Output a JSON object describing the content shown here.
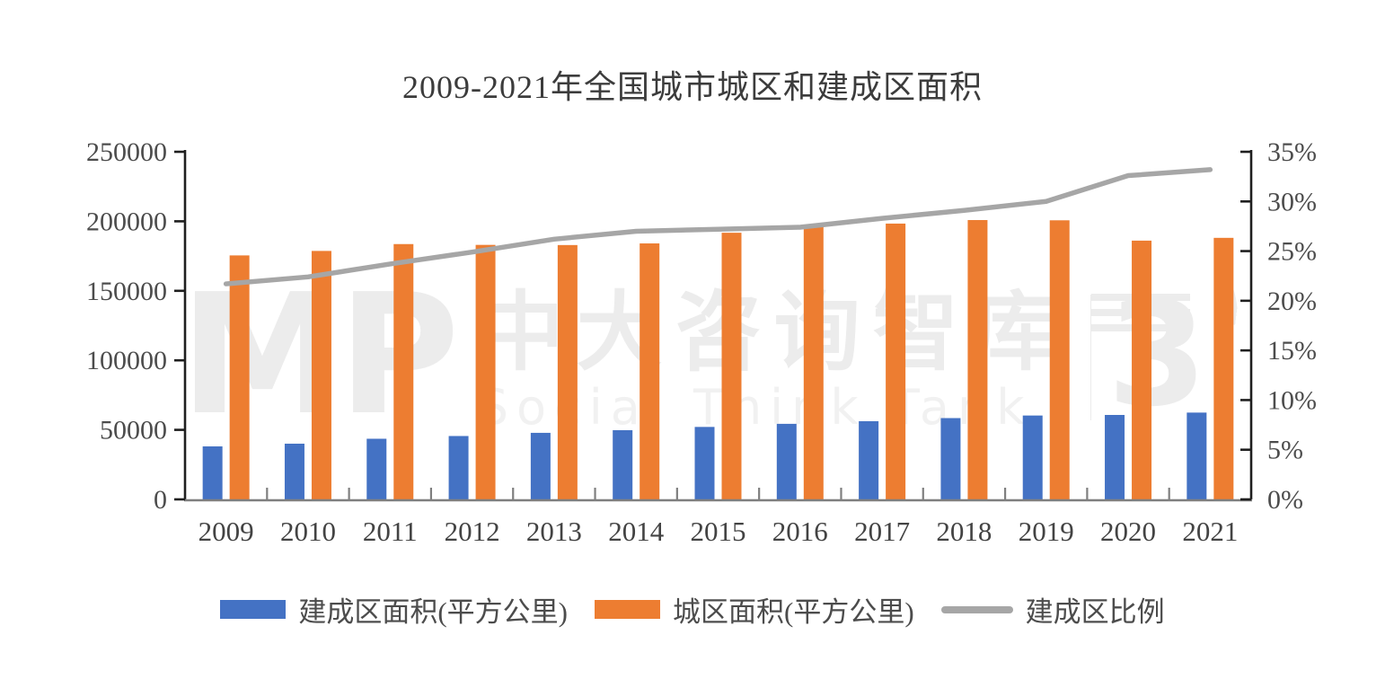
{
  "watermark": {
    "logo_text": "MP",
    "cn_text": "中大咨询智库",
    "en_text": "Social Think Tank",
    "right_logo": "3"
  },
  "chart_data": {
    "type": "bar+line combo",
    "title": "2009-2021年全国城市城区和建成区面积",
    "categories": [
      "2009",
      "2010",
      "2011",
      "2012",
      "2013",
      "2014",
      "2015",
      "2016",
      "2017",
      "2018",
      "2019",
      "2020",
      "2021"
    ],
    "series": [
      {
        "name": "建成区面积(平方公里)",
        "type": "bar",
        "axis": "left",
        "color": "#4472C4",
        "values": [
          38107,
          40058,
          43603,
          45566,
          47855,
          49773,
          52102,
          54331,
          56225,
          58456,
          60312,
          60721,
          62421
        ]
      },
      {
        "name": "城区面积(平方公里)",
        "type": "bar",
        "axis": "left",
        "color": "#ED7D31",
        "values": [
          175464,
          178692,
          183618,
          183039,
          182920,
          184099,
          191776,
          196900,
          198357,
          200897,
          200721,
          186100,
          188100
        ]
      },
      {
        "name": "建成区比例",
        "type": "line",
        "axis": "right",
        "color": "#A6A6A6",
        "values": [
          21.7,
          22.4,
          23.7,
          24.9,
          26.2,
          27.0,
          27.2,
          27.4,
          28.3,
          29.1,
          30.0,
          32.6,
          33.2
        ]
      }
    ],
    "left_axis": {
      "min": 0,
      "max": 250000,
      "step": 50000,
      "tick_labels": [
        "0",
        "50000",
        "100000",
        "150000",
        "200000",
        "250000"
      ]
    },
    "right_axis": {
      "min": 0,
      "max": 35,
      "step": 5,
      "tick_labels": [
        "0%",
        "5%",
        "10%",
        "15%",
        "20%",
        "25%",
        "30%",
        "35%"
      ]
    },
    "legend_position": "bottom",
    "grid": "off"
  }
}
